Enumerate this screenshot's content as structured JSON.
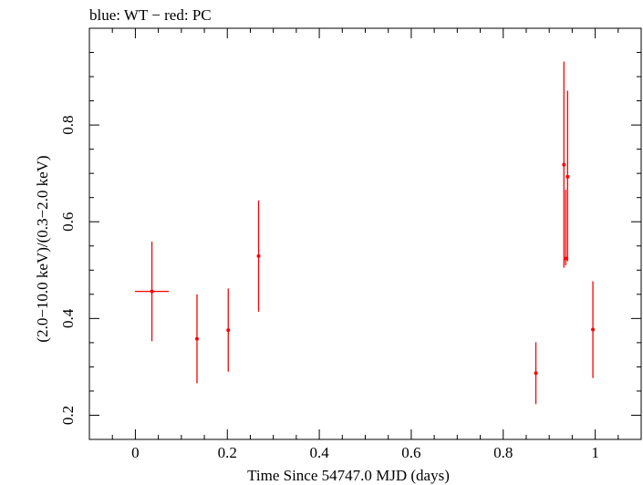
{
  "chart_data": {
    "type": "scatter",
    "title": "blue: WT − red: PC",
    "xlabel": "Time Since 54747.0 MJD (days)",
    "ylabel": "(2.0−10.0 keV)/(0.3−2.0 keV)",
    "xlim": [
      -0.1,
      1.1
    ],
    "ylim": [
      0.15,
      1.0
    ],
    "xticks": [
      0,
      0.2,
      0.4,
      0.6,
      0.8,
      1
    ],
    "xtick_labels": [
      "0",
      "0.2",
      "0.4",
      "0.6",
      "0.8",
      "1"
    ],
    "yticks": [
      0.2,
      0.4,
      0.6,
      0.8
    ],
    "ytick_labels": [
      "0.2",
      "0.4",
      "0.6",
      "0.8"
    ],
    "grid": false,
    "series": [
      {
        "color": "#ff0000",
        "points": [
          {
            "x": 0.036,
            "y": 0.456,
            "xerr": 0.037,
            "yerr_low": 0.103,
            "yerr_high": 0.103
          },
          {
            "x": 0.134,
            "y": 0.358,
            "xerr": 0.002,
            "yerr_low": 0.092,
            "yerr_high": 0.092
          },
          {
            "x": 0.202,
            "y": 0.376,
            "xerr": 0.002,
            "yerr_low": 0.086,
            "yerr_high": 0.086
          },
          {
            "x": 0.268,
            "y": 0.529,
            "xerr": 0.002,
            "yerr_low": 0.115,
            "yerr_high": 0.115
          },
          {
            "x": 0.871,
            "y": 0.287,
            "xerr": 0.002,
            "yerr_low": 0.064,
            "yerr_high": 0.064
          },
          {
            "x": 0.932,
            "y": 0.718,
            "xerr": 0.002,
            "yerr_low": 0.213,
            "yerr_high": 0.213
          },
          {
            "x": 0.936,
            "y": 0.524,
            "xerr": 0.002,
            "yerr_low": 0.014,
            "yerr_high": 0.142
          },
          {
            "x": 0.94,
            "y": 0.693,
            "xerr": 0.002,
            "yerr_low": 0.175,
            "yerr_high": 0.178
          },
          {
            "x": 0.995,
            "y": 0.377,
            "xerr": 0.002,
            "yerr_low": 0.1,
            "yerr_high": 0.1
          }
        ]
      }
    ]
  }
}
